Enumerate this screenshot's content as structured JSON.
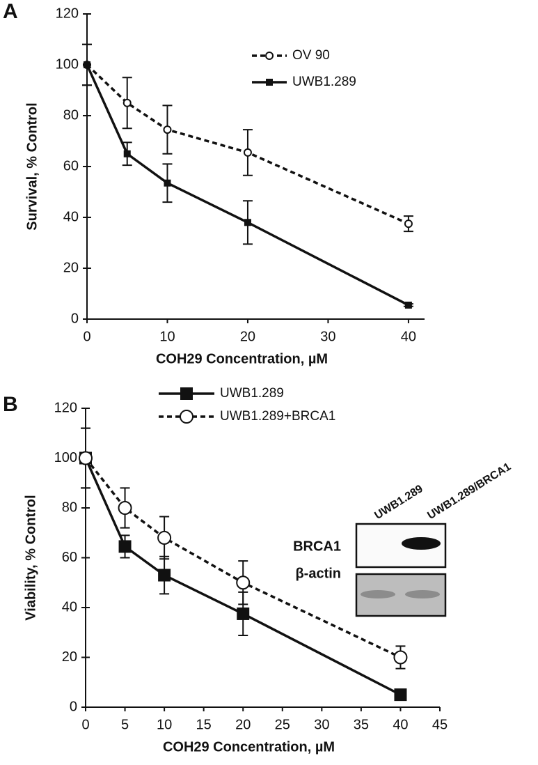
{
  "chart_data": [
    {
      "type": "line",
      "panel": "A",
      "x_label": "COH29 Concentration, µM",
      "y_label": "Survival, % Control",
      "x": [
        0,
        5,
        10,
        20,
        40
      ],
      "xlim": [
        0,
        42
      ],
      "xticks": [
        0,
        10,
        20,
        30,
        40
      ],
      "ylim": [
        0,
        120
      ],
      "yticks": [
        0,
        20,
        40,
        60,
        80,
        100,
        120
      ],
      "series": [
        {
          "name": "OV 90",
          "color": "#111111",
          "line_style": "dashed",
          "marker": "open-circle",
          "values": [
            100,
            85,
            74.5,
            65.5,
            37.5
          ],
          "errors": [
            8,
            10,
            9.5,
            9,
            3
          ]
        },
        {
          "name": "UWB1.289",
          "color": "#111111",
          "line_style": "solid",
          "marker": "filled-square",
          "values": [
            100,
            65,
            53.5,
            38,
            5.5
          ],
          "errors": [
            8,
            4.5,
            7.5,
            8.5,
            0.5
          ]
        }
      ]
    },
    {
      "type": "line",
      "panel": "B",
      "x_label": "COH29 Concentration, µM",
      "y_label": "Viability, % Control",
      "x": [
        0,
        5,
        10,
        20,
        40
      ],
      "xlim": [
        0,
        45
      ],
      "xticks": [
        0,
        5,
        10,
        15,
        20,
        25,
        30,
        35,
        40,
        45
      ],
      "ylim": [
        0,
        120
      ],
      "yticks": [
        0,
        20,
        40,
        60,
        80,
        100,
        120
      ],
      "series": [
        {
          "name": "UWB1.289",
          "color": "#111111",
          "line_style": "solid",
          "marker": "filled-square",
          "values": [
            100,
            64.5,
            53,
            37.5,
            5
          ],
          "errors": [
            12,
            4.5,
            7.5,
            8.7,
            1
          ]
        },
        {
          "name": "UWB1.289+BRCA1",
          "color": "#111111",
          "line_style": "dashed",
          "marker": "open-circle",
          "values": [
            100,
            80,
            68,
            50,
            20
          ],
          "errors": [
            12,
            8,
            8.5,
            8.7,
            4.5
          ]
        }
      ],
      "inset": {
        "lanes": [
          "UWB1.289",
          "UWB1.289/BRCA1"
        ],
        "rows": [
          "BRCA1",
          "β-actin"
        ]
      }
    }
  ]
}
